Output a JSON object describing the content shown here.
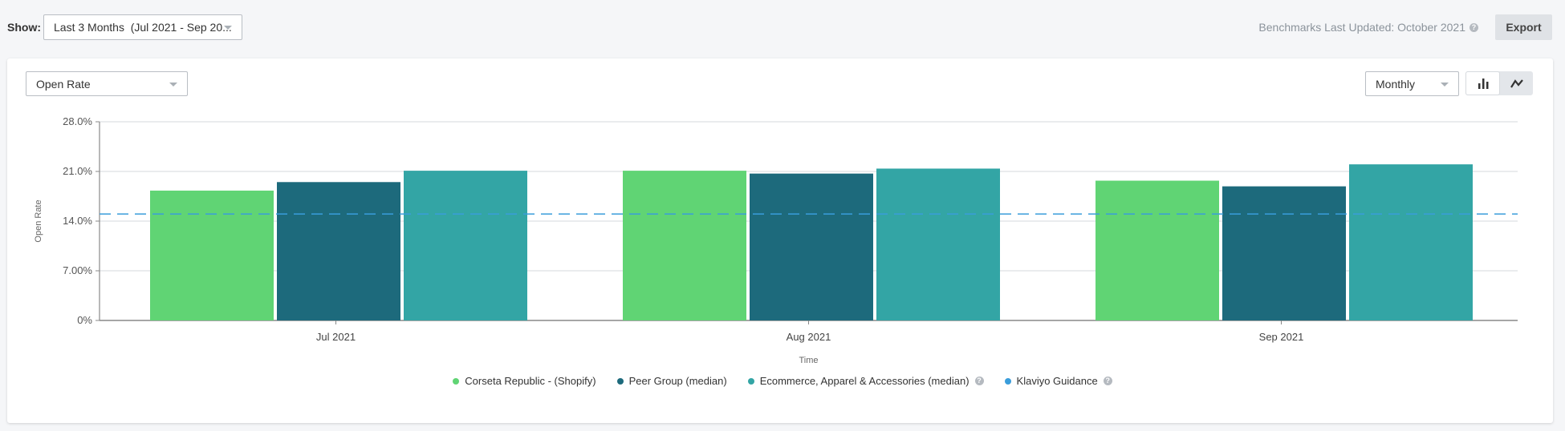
{
  "header": {
    "show_label": "Show:",
    "date_range": "Last 3 Months  (Jul 2021 - Sep 20...",
    "benchmarks_text": "Benchmarks Last Updated: October 2021",
    "export_label": "Export"
  },
  "controls": {
    "metric": "Open Rate",
    "interval": "Monthly",
    "chart_mode": "bar"
  },
  "colors": {
    "green": "#60d474",
    "dark_teal": "#1d6a7c",
    "teal": "#33a5a5",
    "guidance": "#3a9ddb"
  },
  "chart_data": {
    "type": "bar",
    "categories": [
      "Jul 2021",
      "Aug 2021",
      "Sep 2021"
    ],
    "series": [
      {
        "name": "Corseta Republic - (Shopify)",
        "color": "#60d474",
        "values": [
          18.3,
          21.1,
          19.7
        ]
      },
      {
        "name": "Peer Group (median)",
        "color": "#1d6a7c",
        "values": [
          19.5,
          20.7,
          18.9
        ]
      },
      {
        "name": "Ecommerce, Apparel & Accessories (median)",
        "color": "#33a5a5",
        "values": [
          21.1,
          21.4,
          22.0
        ]
      }
    ],
    "guidance": {
      "name": "Klaviyo Guidance",
      "color": "#3a9ddb",
      "value": 15.0,
      "style": "dashed"
    },
    "xlabel": "Time",
    "ylabel": "Open Rate",
    "ylim": [
      0,
      28
    ],
    "yticks": [
      "0%",
      "7.00%",
      "14.0%",
      "21.0%",
      "28.0%"
    ],
    "ytick_values": [
      0,
      7,
      14,
      21,
      28
    ],
    "grid": true,
    "legend": "bottom"
  }
}
